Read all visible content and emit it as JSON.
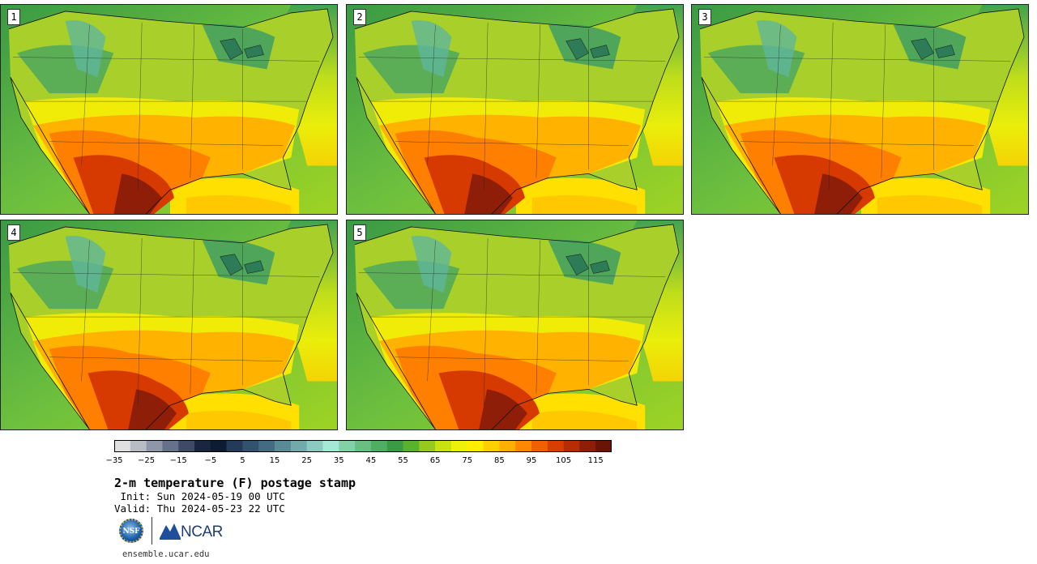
{
  "panels": [
    {
      "label": "1"
    },
    {
      "label": "2"
    },
    {
      "label": "3"
    },
    {
      "label": "4"
    },
    {
      "label": "5"
    }
  ],
  "colorbar": {
    "colors": [
      "#e0e0e0",
      "#b8bcc4",
      "#8e96a8",
      "#66718a",
      "#3e4a66",
      "#1a2540",
      "#0e1c33",
      "#233a58",
      "#325270",
      "#456b83",
      "#5a8a96",
      "#72a9ab",
      "#8cc9c0",
      "#a6e8d6",
      "#86d0a6",
      "#6abe82",
      "#4fae63",
      "#3b9a45",
      "#5bb12e",
      "#97c91e",
      "#c9e013",
      "#eef20a",
      "#ffee00",
      "#ffd000",
      "#ffb000",
      "#ff8800",
      "#f06000",
      "#d83e00",
      "#b52c05",
      "#8e1e08",
      "#6a1408"
    ],
    "ticks": [
      "−35",
      "−25",
      "−15",
      "−5",
      "5",
      "15",
      "25",
      "35",
      "45",
      "55",
      "65",
      "75",
      "85",
      "95",
      "105",
      "115"
    ]
  },
  "title": "2-m temperature (F) postage stamp",
  "init": " Init: Sun 2024-05-19 00 UTC",
  "valid": "Valid: Thu 2024-05-23 22 UTC",
  "logos": {
    "nsf": "NSF",
    "ncar": "NCAR"
  },
  "site": "ensemble.ucar.edu"
}
